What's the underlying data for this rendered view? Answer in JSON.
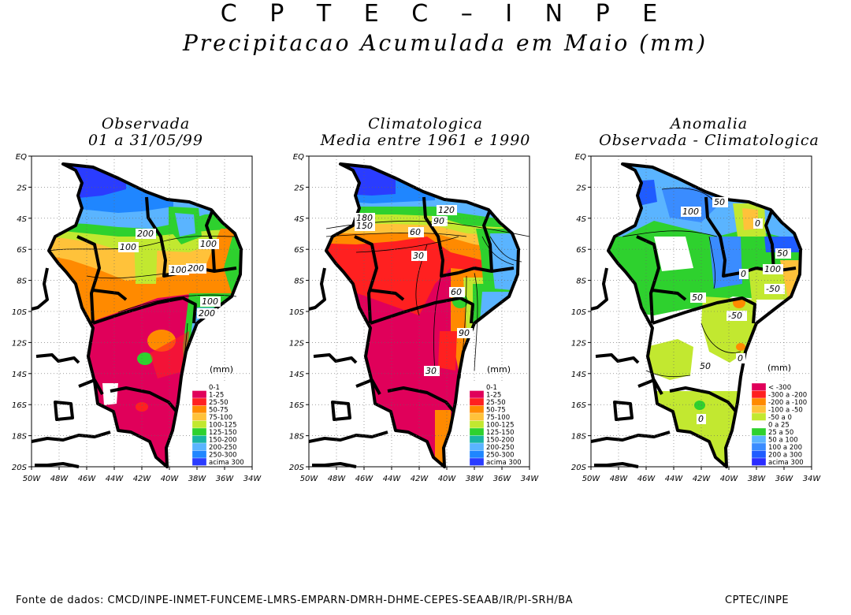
{
  "header": {
    "agency": "C P T E C – I N P E",
    "title": "Precipitacao Acumulada em Maio (mm)"
  },
  "panels": [
    {
      "title_line1": "Observada",
      "title_line2": "01 a 31/05/99",
      "unit": "(mm)",
      "legend": [
        "0-1",
        "1-25",
        "25-50",
        "50-75",
        "75-100",
        "100-125",
        "125-150",
        "150-200",
        "200-250",
        "250-300",
        "acima 300"
      ],
      "legend_colors": [
        "#ffffff",
        "#e0005a",
        "#ff2020",
        "#ff8a00",
        "#ffc23a",
        "#c2e830",
        "#2ed12e",
        "#19b4a4",
        "#5ab4ff",
        "#1f86ff",
        "#2a3cff"
      ],
      "contour_labels": [
        "200",
        "100",
        "100",
        "100",
        "200",
        "100",
        "200"
      ]
    },
    {
      "title_line1": "Climatologica",
      "title_line2": "Media entre 1961 e 1990",
      "unit": "(mm)",
      "legend": [
        "0-1",
        "1-25",
        "25-50",
        "50-75",
        "75-100",
        "100-125",
        "125-150",
        "150-200",
        "200-250",
        "250-300",
        "acima 300"
      ],
      "legend_colors": [
        "#ffffff",
        "#e0005a",
        "#ff2020",
        "#ff8a00",
        "#ffc23a",
        "#c2e830",
        "#2ed12e",
        "#19b4a4",
        "#5ab4ff",
        "#1f86ff",
        "#2a3cff"
      ],
      "contour_labels": [
        "180",
        "150",
        "120",
        "90",
        "60",
        "30",
        "60",
        "90",
        "30"
      ]
    },
    {
      "title_line1": "Anomalia",
      "title_line2": "Observada - Climatologica",
      "unit": "(mm)",
      "legend": [
        "<  -300",
        "-300 a -200",
        "-200 a -100",
        "-100 a -50",
        "-50 a 0",
        "0 a 25",
        "25 a 50",
        "50 a 100",
        "100 a 200",
        "200 a 300",
        "acima 300"
      ],
      "legend_colors": [
        "#e0005a",
        "#ff2020",
        "#ff8a00",
        "#ffc23a",
        "#c2e830",
        "#ffffff",
        "#2ed12e",
        "#5ab4ff",
        "#3a8cff",
        "#1f5cff",
        "#2a2cff"
      ],
      "contour_labels": [
        "100",
        "50",
        "0",
        "50",
        "100",
        "0",
        "-50",
        "50",
        "-50",
        "0",
        "50",
        "0"
      ]
    }
  ],
  "axes": {
    "y_ticks": [
      "EQ",
      "2S",
      "4S",
      "6S",
      "8S",
      "10S",
      "12S",
      "14S",
      "16S",
      "18S",
      "20S"
    ],
    "x_ticks": [
      "50W",
      "48W",
      "46W",
      "44W",
      "42W",
      "40W",
      "38W",
      "36W",
      "34W"
    ]
  },
  "footer": {
    "source": "Fonte de dados: CMCD/INPE-INMET-FUNCEME-LMRS-EMPARN-DMRH-DHME-CEPES-SEAAB/IR/PI-SRH/BA",
    "org": "CPTEC/INPE"
  }
}
